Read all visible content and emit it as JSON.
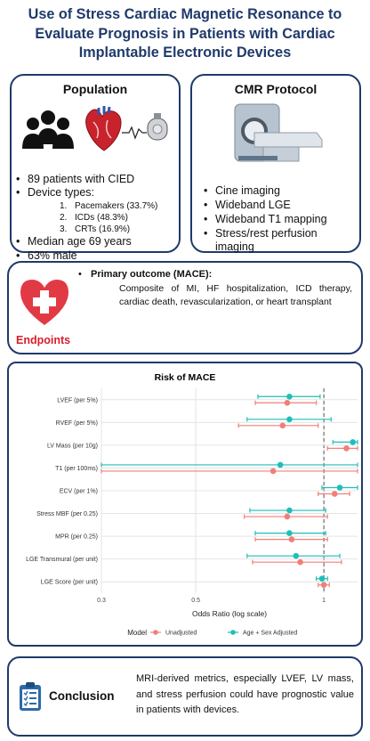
{
  "title": {
    "line1": "Use of Stress Cardiac Magnetic Resonance to",
    "line2": "Evaluate Prognosis in Patients with Cardiac",
    "line3": "Implantable Electronic Devices"
  },
  "population": {
    "title": "Population",
    "bullets": [
      "89 patients with CIED",
      "Device types:",
      "Median age 69 years",
      "63% male"
    ],
    "device_types": [
      {
        "num": "1.",
        "label": "Pacemakers (33.7%)"
      },
      {
        "num": "2.",
        "label": "ICDs (48.3%)"
      },
      {
        "num": "3.",
        "label": "CRTs (16.9%)"
      }
    ]
  },
  "cmr": {
    "title": "CMR Protocol",
    "bullets": [
      "Cine imaging",
      "Wideband LGE",
      "Wideband T1 mapping",
      "Stress/rest perfusion",
      "imaging"
    ]
  },
  "endpoints": {
    "label": "Endpoints",
    "primary": "Primary outcome (MACE):",
    "description": "Composite of MI, HF hospitalization, ICD therapy, cardiac death, revascularization, or heart transplant"
  },
  "conclusion": {
    "label": "Conclusion",
    "text": "MRI-derived metrics, especially LVEF, LV mass, and stress perfusion could have prognostic value in patients with devices."
  },
  "colors": {
    "navy": "#1f3a6b",
    "unadjusted": "#f07f78",
    "adjusted": "#1fbfb8",
    "heart_red": "#e23a44"
  },
  "icons": [
    "people-icon",
    "heart-icon",
    "pacemaker-icon",
    "mri-scanner-icon",
    "heart-plus-icon",
    "checklist-icon"
  ],
  "chart_data": {
    "type": "forest",
    "title": "Risk of MACE",
    "xlabel": "Odds Ratio (log scale)",
    "x_scale": "log",
    "xlim": [
      0.3,
      1.2
    ],
    "xticks": [
      0.3,
      0.5,
      1
    ],
    "xtick_labels": [
      "0.3",
      "0.5",
      "1"
    ],
    "reference_line": 1,
    "grid": true,
    "legend": {
      "title": "Model",
      "position": "bottom"
    },
    "categories": [
      "LVEF (per 5%)",
      "RVEF (per 5%)",
      "LV Mass (per 10g)",
      "T1 (per 100ms)",
      "ECV (per 1%)",
      "Stress MBF (per 0.25)",
      "MPR (per 0.25)",
      "LGE Transmural (per unit)",
      "LGE Score (per unit)"
    ],
    "series": [
      {
        "name": "Unadjusted",
        "estimate": [
          0.82,
          0.8,
          1.13,
          0.76,
          1.06,
          0.82,
          0.84,
          0.88,
          1.0
        ],
        "lower": [
          0.69,
          0.63,
          1.02,
          0.3,
          0.97,
          0.65,
          0.69,
          0.68,
          0.97
        ],
        "upper": [
          0.96,
          0.97,
          1.22,
          1.21,
          1.15,
          1.02,
          1.02,
          1.1,
          1.03
        ]
      },
      {
        "name": "Age + Sex Adjusted",
        "estimate": [
          0.83,
          0.83,
          1.17,
          0.79,
          1.09,
          0.83,
          0.83,
          0.86,
          0.99
        ],
        "lower": [
          0.7,
          0.66,
          1.05,
          0.3,
          0.99,
          0.67,
          0.69,
          0.66,
          0.96
        ],
        "upper": [
          0.98,
          1.04,
          1.28,
          1.31,
          1.21,
          1.01,
          1.01,
          1.09,
          1.02
        ]
      }
    ]
  }
}
